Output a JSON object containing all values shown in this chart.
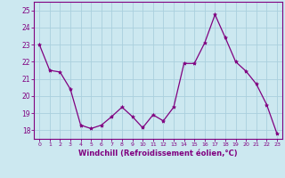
{
  "x": [
    0,
    1,
    2,
    3,
    4,
    5,
    6,
    7,
    8,
    9,
    10,
    11,
    12,
    13,
    14,
    15,
    16,
    17,
    18,
    19,
    20,
    21,
    22,
    23
  ],
  "y": [
    23.0,
    21.5,
    21.4,
    20.4,
    18.3,
    18.1,
    18.3,
    18.8,
    19.35,
    18.8,
    18.15,
    18.9,
    18.55,
    19.35,
    21.9,
    21.9,
    23.1,
    24.75,
    23.4,
    22.0,
    21.45,
    20.7,
    19.5,
    17.8
  ],
  "line_color": "#800080",
  "marker": "*",
  "marker_color": "#800080",
  "bg_color": "#cce8f0",
  "grid_color": "#aad0dd",
  "xlabel": "Windchill (Refroidissement éolien,°C)",
  "ylim": [
    17.5,
    25.5
  ],
  "yticks": [
    18,
    19,
    20,
    21,
    22,
    23,
    24,
    25
  ],
  "xticks": [
    0,
    1,
    2,
    3,
    4,
    5,
    6,
    7,
    8,
    9,
    10,
    11,
    12,
    13,
    14,
    15,
    16,
    17,
    18,
    19,
    20,
    21,
    22,
    23
  ],
  "tick_color": "#800080"
}
